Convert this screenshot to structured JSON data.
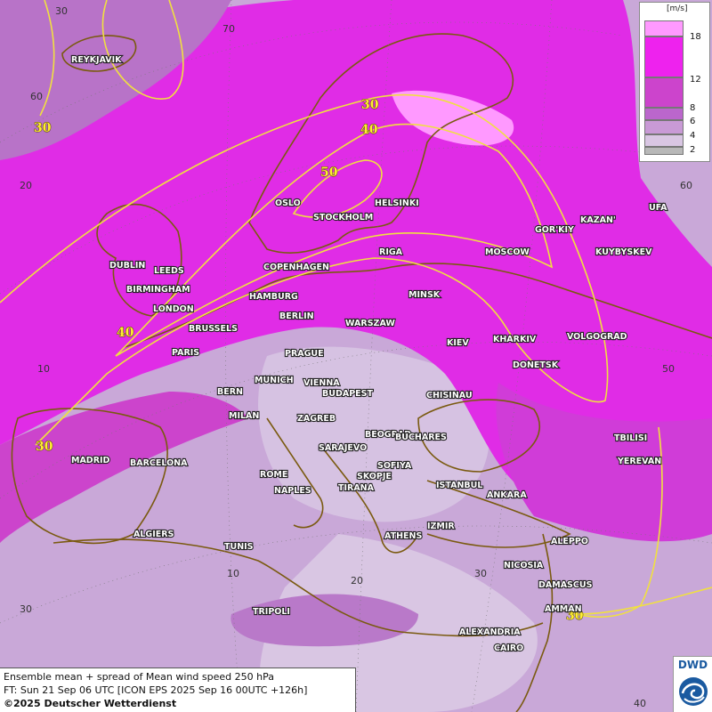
{
  "map": {
    "cities": [
      {
        "name": "REYKJAVIK"
      },
      {
        "name": "OSLO"
      },
      {
        "name": "STOCKHOLM"
      },
      {
        "name": "HELSINKI"
      },
      {
        "name": "DUBLIN"
      },
      {
        "name": "LEEDS"
      },
      {
        "name": "BIRMINGHAM"
      },
      {
        "name": "LONDON"
      },
      {
        "name": "COPENHAGEN"
      },
      {
        "name": "HAMBURG"
      },
      {
        "name": "RIGA"
      },
      {
        "name": "MOSCOW"
      },
      {
        "name": "GOR'KIY"
      },
      {
        "name": "KAZAN'"
      },
      {
        "name": "UFA"
      },
      {
        "name": "KUYBYSKEV"
      },
      {
        "name": "MINSK"
      },
      {
        "name": "BERLIN"
      },
      {
        "name": "WARSZAW"
      },
      {
        "name": "BRUSSELS"
      },
      {
        "name": "PARIS"
      },
      {
        "name": "PRAGUE"
      },
      {
        "name": "KIEV"
      },
      {
        "name": "KHARKIV"
      },
      {
        "name": "VOLGOGRAD"
      },
      {
        "name": "DONETSK"
      },
      {
        "name": "MUNICH"
      },
      {
        "name": "VIENNA"
      },
      {
        "name": "BUDAPEST"
      },
      {
        "name": "BERN"
      },
      {
        "name": "MILAN"
      },
      {
        "name": "CHISINAU"
      },
      {
        "name": "ZAGREB"
      },
      {
        "name": "BEOGRAD"
      },
      {
        "name": "BUCHARES"
      },
      {
        "name": "SARAJEVO"
      },
      {
        "name": "TBILISI"
      },
      {
        "name": "YEREVAN"
      },
      {
        "name": "MADRID"
      },
      {
        "name": "BARCELONA"
      },
      {
        "name": "ROME"
      },
      {
        "name": "SOFIYA"
      },
      {
        "name": "SKOPJE"
      },
      {
        "name": "NAPLES"
      },
      {
        "name": "TIRANA"
      },
      {
        "name": "ISTANBUL"
      },
      {
        "name": "ANKARA"
      },
      {
        "name": "ALGIERS"
      },
      {
        "name": "TUNIS"
      },
      {
        "name": "ATHENS"
      },
      {
        "name": "IZMIR"
      },
      {
        "name": "ALEPPO"
      },
      {
        "name": "NICOSIA"
      },
      {
        "name": "DAMASCUS"
      },
      {
        "name": "AMMAN"
      },
      {
        "name": "TRIPOLI"
      },
      {
        "name": "ALEXANDRIA"
      },
      {
        "name": "CAIRO"
      }
    ],
    "grid_labels": [
      "70",
      "60",
      "20",
      "10",
      "10",
      "20",
      "30",
      "40",
      "50",
      "60",
      "30",
      "30"
    ],
    "contour_labels": [
      "30",
      "30",
      "40",
      "50",
      "40",
      "30",
      "30"
    ]
  },
  "legend": {
    "unit": "[m/s]",
    "colors": [
      "#ff99ff",
      "#ee22ee",
      "#cc44cc",
      "#bb66cc",
      "#c99ad6",
      "#d9c6e3",
      "#b8b8b8"
    ],
    "ticks": [
      "18",
      "12",
      "8",
      "6",
      "4",
      "2"
    ]
  },
  "info": {
    "line1": "Ensemble mean + spread of Mean wind speed 250 hPa",
    "line2": "FT: Sun 21 Sep 06 UTC [ICON EPS 2025 Sep 16 00UTC +126h]",
    "line3": "©2025 Deutscher Wetterdienst"
  },
  "logo": {
    "text": "DWD",
    "color": "#1a5aa0"
  }
}
